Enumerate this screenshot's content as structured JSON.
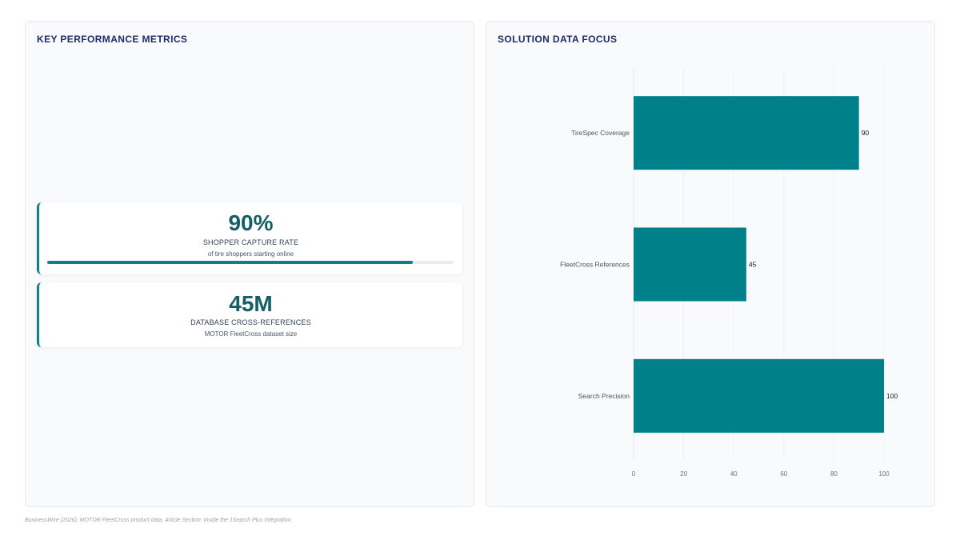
{
  "left_panel": {
    "title": "KEY PERFORMANCE METRICS",
    "metrics": [
      {
        "value": "90%",
        "label": "SHOPPER CAPTURE RATE",
        "sub": "of tire shoppers starting online",
        "progress_percent": 90
      },
      {
        "value": "45M",
        "label": "DATABASE CROSS-REFERENCES",
        "sub": "MOTOR FleetCross dataset size"
      }
    ]
  },
  "right_panel": {
    "title": "SOLUTION DATA FOCUS"
  },
  "chart_data": {
    "type": "bar",
    "orientation": "horizontal",
    "categories": [
      "TireSpec Coverage",
      "FleetCross References",
      "Search Precision"
    ],
    "values": [
      90,
      45,
      100
    ],
    "xlim": [
      0,
      100
    ],
    "xticks": [
      "0",
      "20",
      "40",
      "60",
      "80",
      "100"
    ],
    "data_labels": [
      "90",
      "45",
      "100"
    ],
    "bar_color": "#00818a",
    "grid": true
  },
  "colors": {
    "accent": "#0f7f8a",
    "metric_value": "#145f66",
    "title": "#1f2a6b",
    "bar": "#00818a"
  },
  "footer": {
    "source": "BusinessWire (2026), MOTOR FleetCross product data, Article Section: Inside the 1Search Plus Integration"
  }
}
